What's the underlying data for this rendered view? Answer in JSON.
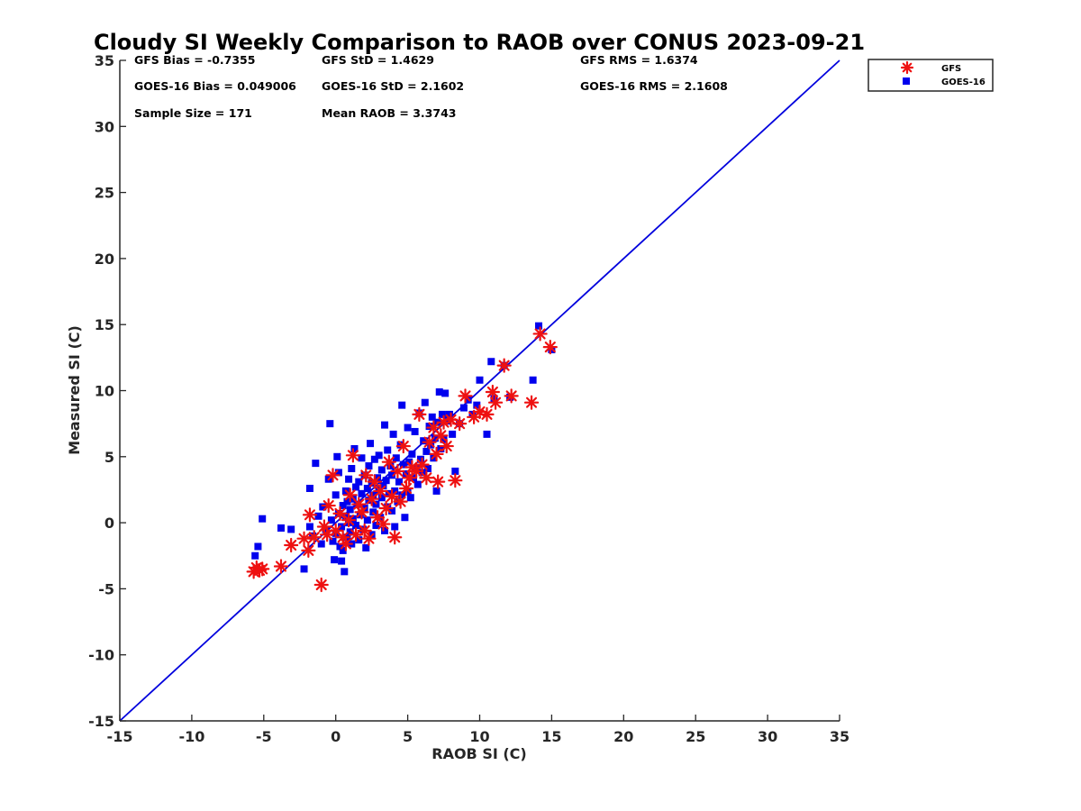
{
  "chart_data": {
    "type": "scatter",
    "title": "Cloudy SI Weekly Comparison to RAOB over CONUS 2023-09-21",
    "xlabel": "RAOB SI (C)",
    "ylabel": "Measured SI (C)",
    "xlim": [
      -15,
      35
    ],
    "ylim": [
      -15,
      35
    ],
    "xticks": [
      -15,
      -10,
      -5,
      0,
      5,
      10,
      15,
      20,
      25,
      30,
      35
    ],
    "yticks": [
      -15,
      -10,
      -5,
      0,
      5,
      10,
      15,
      20,
      25,
      30,
      35
    ],
    "grid": false,
    "legend_position": "outside top-right",
    "reference_line": {
      "label": "1:1",
      "color": "#0000dd",
      "from": [
        -15,
        -15
      ],
      "to": [
        35,
        35
      ]
    },
    "stats": [
      "GFS Bias = -0.7355",
      "GFS StD = 1.4629",
      "GFS RMS = 1.6374",
      "GOES-16 Bias = 0.049006",
      "GOES-16 StD = 2.1602",
      "GOES-16 RMS = 2.1608",
      "Sample Size = 171",
      "Mean RAOB = 3.3743"
    ],
    "series": [
      {
        "name": "GOES-16",
        "marker": "square",
        "color": "#0000ee",
        "points": [
          [
            -5.6,
            -2.5
          ],
          [
            -5.4,
            -1.8
          ],
          [
            -5.1,
            0.3
          ],
          [
            -3.8,
            -0.4
          ],
          [
            -3.1,
            -0.5
          ],
          [
            -2.2,
            -3.5
          ],
          [
            -1.8,
            2.6
          ],
          [
            -1.8,
            -0.3
          ],
          [
            -1.6,
            -1.0
          ],
          [
            -1.4,
            4.5
          ],
          [
            -1.2,
            0.5
          ],
          [
            -1.0,
            -1.6
          ],
          [
            -0.9,
            1.2
          ],
          [
            -0.7,
            -0.5
          ],
          [
            -0.5,
            3.3
          ],
          [
            -0.4,
            7.5
          ],
          [
            -0.3,
            0.2
          ],
          [
            -0.2,
            -1.4
          ],
          [
            -0.1,
            -2.8
          ],
          [
            0.0,
            2.1
          ],
          [
            0.0,
            -0.8
          ],
          [
            0.1,
            5.0
          ],
          [
            0.2,
            3.8
          ],
          [
            0.2,
            0.7
          ],
          [
            0.3,
            -1.8
          ],
          [
            0.4,
            -0.3
          ],
          [
            0.4,
            -2.9
          ],
          [
            0.5,
            1.3
          ],
          [
            0.5,
            -2.1
          ],
          [
            0.6,
            -3.7
          ],
          [
            0.7,
            0.5
          ],
          [
            0.7,
            2.4
          ],
          [
            0.8,
            1.6
          ],
          [
            0.8,
            -1.1
          ],
          [
            0.9,
            3.3
          ],
          [
            0.9,
            0.0
          ],
          [
            1.0,
            -0.7
          ],
          [
            1.0,
            1.0
          ],
          [
            1.1,
            4.1
          ],
          [
            1.1,
            -1.6
          ],
          [
            1.2,
            1.8
          ],
          [
            1.2,
            0.3
          ],
          [
            1.3,
            5.6
          ],
          [
            1.4,
            2.7
          ],
          [
            1.4,
            -0.2
          ],
          [
            1.5,
            1.4
          ],
          [
            1.6,
            3.1
          ],
          [
            1.6,
            -1.3
          ],
          [
            1.7,
            0.6
          ],
          [
            1.8,
            2.2
          ],
          [
            1.8,
            4.9
          ],
          [
            1.9,
            -0.5
          ],
          [
            2.0,
            1.1
          ],
          [
            2.0,
            3.6
          ],
          [
            2.1,
            -1.9
          ],
          [
            2.2,
            0.2
          ],
          [
            2.2,
            2.6
          ],
          [
            2.3,
            4.3
          ],
          [
            2.3,
            1.7
          ],
          [
            2.4,
            6.0
          ],
          [
            2.5,
            -0.9
          ],
          [
            2.5,
            3.0
          ],
          [
            2.6,
            0.8
          ],
          [
            2.6,
            2.1
          ],
          [
            2.7,
            4.8
          ],
          [
            2.8,
            1.4
          ],
          [
            2.8,
            -0.2
          ],
          [
            2.9,
            3.4
          ],
          [
            3.0,
            2.5
          ],
          [
            3.0,
            5.1
          ],
          [
            3.1,
            0.4
          ],
          [
            3.2,
            1.9
          ],
          [
            3.2,
            4.0
          ],
          [
            3.3,
            2.8
          ],
          [
            3.4,
            7.4
          ],
          [
            3.4,
            -0.6
          ],
          [
            3.5,
            3.2
          ],
          [
            3.6,
            1.2
          ],
          [
            3.6,
            5.5
          ],
          [
            3.7,
            2.2
          ],
          [
            3.8,
            4.3
          ],
          [
            3.9,
            0.9
          ],
          [
            3.9,
            3.6
          ],
          [
            4.0,
            6.7
          ],
          [
            4.1,
            2.4
          ],
          [
            4.1,
            -0.3
          ],
          [
            4.2,
            4.9
          ],
          [
            4.3,
            1.6
          ],
          [
            4.4,
            3.1
          ],
          [
            4.5,
            5.9
          ],
          [
            4.6,
            8.9
          ],
          [
            4.6,
            2.1
          ],
          [
            4.7,
            4.4
          ],
          [
            4.8,
            0.4
          ],
          [
            4.9,
            3.7
          ],
          [
            5.0,
            2.4
          ],
          [
            5.0,
            7.2
          ],
          [
            5.1,
            4.6
          ],
          [
            5.2,
            1.9
          ],
          [
            5.3,
            5.2
          ],
          [
            5.4,
            3.4
          ],
          [
            5.5,
            6.9
          ],
          [
            5.6,
            4.1
          ],
          [
            5.7,
            2.9
          ],
          [
            5.8,
            8.3
          ],
          [
            5.9,
            4.8
          ],
          [
            6.0,
            3.8
          ],
          [
            6.1,
            6.2
          ],
          [
            6.2,
            9.1
          ],
          [
            6.3,
            5.4
          ],
          [
            6.4,
            4.1
          ],
          [
            6.5,
            7.3
          ],
          [
            6.6,
            5.9
          ],
          [
            6.7,
            8.0
          ],
          [
            6.8,
            4.9
          ],
          [
            6.9,
            6.4
          ],
          [
            7.0,
            2.4
          ],
          [
            7.1,
            7.6
          ],
          [
            7.2,
            9.9
          ],
          [
            7.3,
            5.6
          ],
          [
            7.4,
            8.2
          ],
          [
            7.5,
            6.3
          ],
          [
            7.6,
            9.8
          ],
          [
            7.7,
            7.7
          ],
          [
            7.9,
            8.2
          ],
          [
            8.1,
            6.7
          ],
          [
            8.3,
            3.9
          ],
          [
            8.6,
            7.5
          ],
          [
            8.9,
            8.7
          ],
          [
            9.2,
            9.3
          ],
          [
            9.5,
            8.2
          ],
          [
            9.8,
            8.9
          ],
          [
            10.0,
            10.8
          ],
          [
            10.5,
            6.7
          ],
          [
            10.8,
            12.2
          ],
          [
            11.0,
            9.4
          ],
          [
            11.7,
            11.9
          ],
          [
            12.1,
            9.5
          ],
          [
            13.7,
            10.8
          ],
          [
            14.1,
            14.9
          ],
          [
            15.0,
            13.1
          ]
        ]
      },
      {
        "name": "GFS",
        "marker": "asterisk",
        "color": "#ee1111",
        "points": [
          [
            -5.7,
            -3.7
          ],
          [
            -5.5,
            -3.4
          ],
          [
            -5.3,
            -3.6
          ],
          [
            -5.1,
            -3.5
          ],
          [
            -3.8,
            -3.3
          ],
          [
            -3.1,
            -1.7
          ],
          [
            -2.2,
            -1.2
          ],
          [
            -1.9,
            -2.1
          ],
          [
            -1.8,
            0.6
          ],
          [
            -1.5,
            -1.1
          ],
          [
            -1.0,
            -4.7
          ],
          [
            -0.8,
            -0.3
          ],
          [
            -0.6,
            -0.9
          ],
          [
            -0.5,
            1.3
          ],
          [
            -0.2,
            3.6
          ],
          [
            0.0,
            -0.6
          ],
          [
            0.3,
            0.7
          ],
          [
            0.5,
            -1.1
          ],
          [
            0.7,
            -1.6
          ],
          [
            0.9,
            0.2
          ],
          [
            1.0,
            2.1
          ],
          [
            1.2,
            5.1
          ],
          [
            1.4,
            -0.9
          ],
          [
            1.6,
            1.4
          ],
          [
            1.8,
            0.8
          ],
          [
            2.0,
            -0.6
          ],
          [
            2.1,
            3.6
          ],
          [
            2.3,
            -1.2
          ],
          [
            2.5,
            1.8
          ],
          [
            2.7,
            3.1
          ],
          [
            2.9,
            0.4
          ],
          [
            3.1,
            2.4
          ],
          [
            3.3,
            -0.1
          ],
          [
            3.5,
            1.1
          ],
          [
            3.7,
            4.6
          ],
          [
            3.9,
            2.0
          ],
          [
            4.1,
            -1.1
          ],
          [
            4.3,
            3.9
          ],
          [
            4.5,
            1.6
          ],
          [
            4.7,
            5.8
          ],
          [
            4.9,
            2.6
          ],
          [
            5.1,
            3.4
          ],
          [
            5.3,
            4.2
          ],
          [
            5.6,
            3.9
          ],
          [
            5.8,
            8.2
          ],
          [
            6.0,
            4.4
          ],
          [
            6.3,
            3.4
          ],
          [
            6.5,
            6.1
          ],
          [
            6.8,
            7.2
          ],
          [
            7.0,
            5.2
          ],
          [
            7.1,
            3.1
          ],
          [
            7.3,
            6.6
          ],
          [
            7.5,
            7.6
          ],
          [
            7.7,
            5.8
          ],
          [
            8.0,
            7.8
          ],
          [
            8.3,
            3.2
          ],
          [
            8.6,
            7.5
          ],
          [
            9.0,
            9.6
          ],
          [
            9.6,
            8.0
          ],
          [
            10.0,
            8.4
          ],
          [
            10.5,
            8.2
          ],
          [
            10.9,
            9.9
          ],
          [
            11.1,
            9.1
          ],
          [
            11.7,
            11.9
          ],
          [
            12.2,
            9.6
          ],
          [
            13.6,
            9.1
          ],
          [
            14.2,
            14.3
          ],
          [
            14.9,
            13.3
          ]
        ]
      }
    ]
  }
}
